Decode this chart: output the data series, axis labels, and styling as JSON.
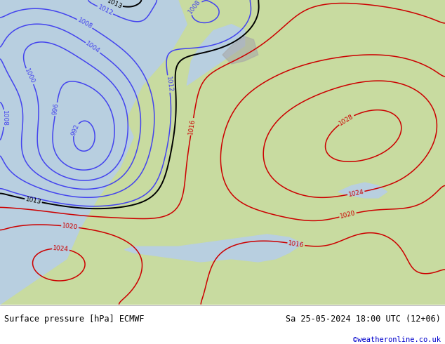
{
  "title_left": "Surface pressure [hPa] ECMWF",
  "title_right": "Sa 25-05-2024 18:00 UTC (12+06)",
  "copyright": "©weatheronline.co.uk",
  "fig_width": 6.34,
  "fig_height": 4.9,
  "dpi": 100,
  "bottom_bar_color": "#f0f0f0",
  "bottom_text_color": "#000000",
  "copyright_color": "#0000cc",
  "land_color": "#c8dba0",
  "sea_color": "#b8cfe0",
  "mountain_color": "#a8a8a8",
  "low_contour_color": "#4444ee",
  "high_contour_color": "#cc0000",
  "mid_contour_color": "#000000"
}
